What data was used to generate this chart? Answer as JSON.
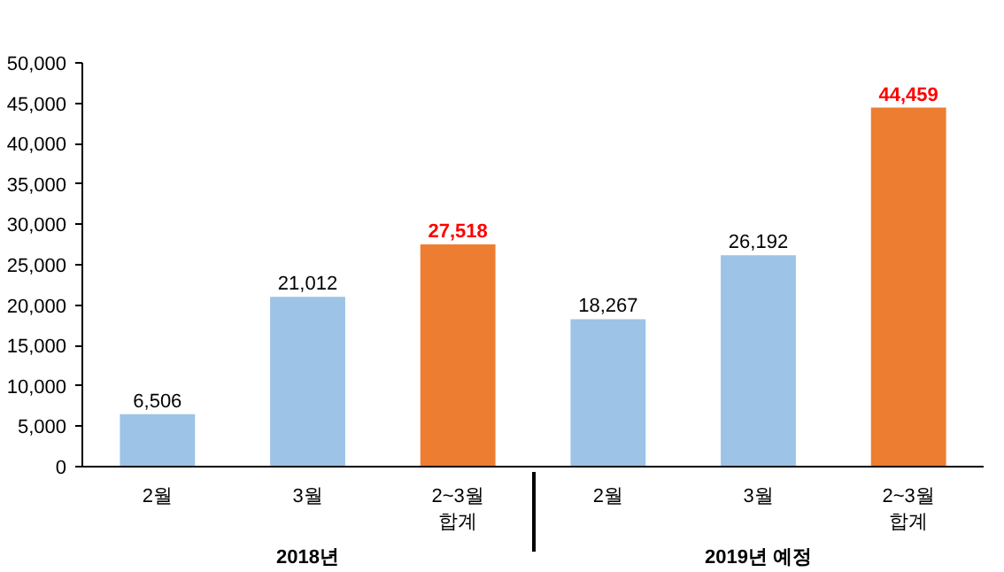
{
  "chart_data": {
    "type": "bar",
    "categories": [
      "2월",
      "3월",
      "2~3월\n합계",
      "2월",
      "3월",
      "2~3월\n합계"
    ],
    "annotations": [
      "2018년",
      "2019년 예정"
    ],
    "values": [
      6506,
      21012,
      27518,
      18267,
      26192,
      44459
    ],
    "colors": [
      "#9dc3e6",
      "#9dc3e6",
      "#ed7d31",
      "#9dc3e6",
      "#9dc3e6",
      "#ed7d31"
    ],
    "value_labels": [
      "6,506",
      "21,012",
      "27,518",
      "18,267",
      "26,192",
      "44,459"
    ],
    "ylim": [
      0,
      50000
    ],
    "yticks": [
      0,
      {
        "value": 5000,
        "label": "5,000"
      },
      {
        "value": 10000,
        "label": "10,000"
      },
      {
        "value": 15000,
        "label": "15,000"
      },
      {
        "value": 20000,
        "label": "20,000"
      },
      {
        "value": 25000,
        "label": "25,000"
      },
      {
        "value": 30000,
        "label": "30,000"
      },
      {
        "value": 35000,
        "label": "35,000"
      },
      {
        "value": 40000,
        "label": "40,000"
      },
      {
        "value": 45000,
        "label": "45,000"
      },
      {
        "value": 50000,
        "label": "50,000"
      }
    ],
    "grid": false
  }
}
